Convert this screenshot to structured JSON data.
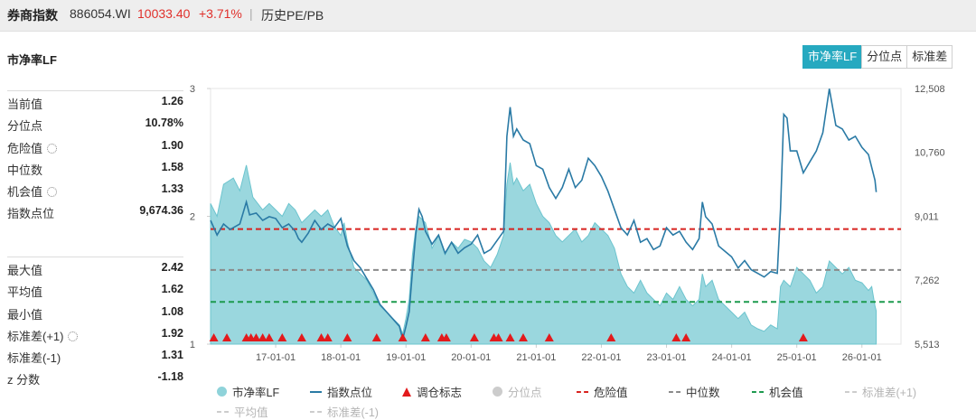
{
  "header": {
    "name": "券商指数",
    "code": "886054.WI",
    "price": "10033.40",
    "change": "+3.71%",
    "separator": "|",
    "history_link": "历史PE/PB"
  },
  "chart_title": "市净率LF",
  "tabs": [
    {
      "label": "市净率LF",
      "active": true
    },
    {
      "label": "分位点",
      "active": false
    },
    {
      "label": "标准差",
      "active": false
    }
  ],
  "stats_top": [
    {
      "label": "当前值",
      "value": "1.26",
      "gear": false
    },
    {
      "label": "分位点",
      "value": "10.78%",
      "gear": false
    },
    {
      "label": "危险值",
      "value": "1.90",
      "gear": true
    },
    {
      "label": "中位数",
      "value": "1.58",
      "gear": false
    },
    {
      "label": "机会值",
      "value": "1.33",
      "gear": true
    },
    {
      "label": "指数点位",
      "value": "9,674.36",
      "gear": false
    }
  ],
  "stats_bottom": [
    {
      "label": "最大值",
      "value": "2.42",
      "gear": false
    },
    {
      "label": "平均值",
      "value": "1.62",
      "gear": false
    },
    {
      "label": "最小值",
      "value": "1.08",
      "gear": false
    },
    {
      "label": "标准差(+1)",
      "value": "1.92",
      "gear": true
    },
    {
      "label": "标准差(-1)",
      "value": "1.31",
      "gear": false
    },
    {
      "label": "z 分数",
      "value": "-1.18",
      "gear": false
    }
  ],
  "colors": {
    "area": "#8fd3da",
    "area_line": "#6cc4ce",
    "index_line": "#2a7aa5",
    "danger": "#d8221f",
    "median": "#8a8a8a",
    "opportunity": "#1d9a4e",
    "marker": "#e31a1c",
    "tab_active": "#26a9c0"
  },
  "legend": [
    {
      "label": "市净率LF",
      "marker": "dot",
      "color": "#8fd3da",
      "faded": false
    },
    {
      "label": "指数点位",
      "marker": "line",
      "color": "#2a7aa5",
      "faded": false
    },
    {
      "label": "调仓标志",
      "marker": "tri",
      "color": "#e31a1c",
      "faded": false
    },
    {
      "label": "分位点",
      "marker": "dot",
      "color": "#cccccc",
      "faded": true
    },
    {
      "label": "危险值",
      "marker": "dash",
      "color": "#d8221f",
      "faded": false
    },
    {
      "label": "中位数",
      "marker": "dash",
      "color": "#8a8a8a",
      "faded": false
    },
    {
      "label": "机会值",
      "marker": "dash",
      "color": "#1d9a4e",
      "faded": false
    },
    {
      "label": "标准差(+1)",
      "marker": "dash",
      "color": "#cccccc",
      "faded": true
    },
    {
      "label": "平均值",
      "marker": "dash",
      "color": "#cccccc",
      "faded": true
    },
    {
      "label": "标准差(-1)",
      "marker": "dash",
      "color": "#cccccc",
      "faded": true
    }
  ],
  "chart_data": {
    "type": "area+line",
    "x_ticks": [
      "17-01-01",
      "18-01-01",
      "19-01-01",
      "20-01-01",
      "21-01-01",
      "22-01-01",
      "23-01-01",
      "24-01-01",
      "25-01-01",
      "26-01-01"
    ],
    "x_range": [
      2016.0,
      2026.6
    ],
    "y_left": {
      "ticks": [
        "1",
        "2",
        "3"
      ],
      "range": [
        1,
        3
      ]
    },
    "y_right": {
      "ticks": [
        "12,508",
        "10,760",
        "9,011",
        "7,262",
        "5,513"
      ],
      "range": [
        5513,
        12508
      ]
    },
    "reference_lines": {
      "danger": 1.9,
      "median": 1.58,
      "opportunity": 1.33
    },
    "pb_series": [
      [
        2016.0,
        2.1
      ],
      [
        2016.1,
        2.0
      ],
      [
        2016.2,
        2.25
      ],
      [
        2016.35,
        2.3
      ],
      [
        2016.45,
        2.2
      ],
      [
        2016.55,
        2.4
      ],
      [
        2016.65,
        2.15
      ],
      [
        2016.8,
        2.05
      ],
      [
        2016.9,
        2.1
      ],
      [
        2017.0,
        2.05
      ],
      [
        2017.1,
        2.0
      ],
      [
        2017.2,
        2.1
      ],
      [
        2017.3,
        2.05
      ],
      [
        2017.4,
        1.95
      ],
      [
        2017.5,
        2.0
      ],
      [
        2017.6,
        2.05
      ],
      [
        2017.7,
        2.0
      ],
      [
        2017.8,
        2.05
      ],
      [
        2017.9,
        1.92
      ],
      [
        2018.0,
        1.85
      ],
      [
        2018.05,
        1.95
      ],
      [
        2018.1,
        1.8
      ],
      [
        2018.2,
        1.6
      ],
      [
        2018.3,
        1.55
      ],
      [
        2018.4,
        1.5
      ],
      [
        2018.5,
        1.4
      ],
      [
        2018.6,
        1.3
      ],
      [
        2018.7,
        1.25
      ],
      [
        2018.8,
        1.2
      ],
      [
        2018.9,
        1.15
      ],
      [
        2018.95,
        1.08
      ],
      [
        2019.0,
        1.2
      ],
      [
        2019.05,
        1.35
      ],
      [
        2019.1,
        1.7
      ],
      [
        2019.15,
        1.9
      ],
      [
        2019.2,
        2.0
      ],
      [
        2019.3,
        1.95
      ],
      [
        2019.4,
        1.75
      ],
      [
        2019.5,
        1.85
      ],
      [
        2019.6,
        1.7
      ],
      [
        2019.7,
        1.8
      ],
      [
        2019.8,
        1.75
      ],
      [
        2019.9,
        1.82
      ],
      [
        2020.0,
        1.8
      ],
      [
        2020.1,
        1.75
      ],
      [
        2020.2,
        1.65
      ],
      [
        2020.3,
        1.6
      ],
      [
        2020.4,
        1.7
      ],
      [
        2020.5,
        1.85
      ],
      [
        2020.55,
        2.25
      ],
      [
        2020.6,
        2.42
      ],
      [
        2020.65,
        2.25
      ],
      [
        2020.7,
        2.3
      ],
      [
        2020.8,
        2.2
      ],
      [
        2020.9,
        2.25
      ],
      [
        2021.0,
        2.1
      ],
      [
        2021.1,
        2.0
      ],
      [
        2021.2,
        1.95
      ],
      [
        2021.3,
        1.85
      ],
      [
        2021.4,
        1.8
      ],
      [
        2021.5,
        1.85
      ],
      [
        2021.6,
        1.9
      ],
      [
        2021.7,
        1.8
      ],
      [
        2021.8,
        1.85
      ],
      [
        2021.9,
        1.95
      ],
      [
        2022.0,
        1.9
      ],
      [
        2022.1,
        1.85
      ],
      [
        2022.2,
        1.75
      ],
      [
        2022.3,
        1.55
      ],
      [
        2022.4,
        1.45
      ],
      [
        2022.5,
        1.4
      ],
      [
        2022.6,
        1.5
      ],
      [
        2022.7,
        1.4
      ],
      [
        2022.8,
        1.35
      ],
      [
        2022.9,
        1.3
      ],
      [
        2023.0,
        1.4
      ],
      [
        2023.1,
        1.35
      ],
      [
        2023.2,
        1.45
      ],
      [
        2023.3,
        1.35
      ],
      [
        2023.4,
        1.3
      ],
      [
        2023.5,
        1.35
      ],
      [
        2023.55,
        1.55
      ],
      [
        2023.6,
        1.45
      ],
      [
        2023.7,
        1.5
      ],
      [
        2023.8,
        1.35
      ],
      [
        2023.9,
        1.3
      ],
      [
        2024.0,
        1.25
      ],
      [
        2024.1,
        1.2
      ],
      [
        2024.2,
        1.25
      ],
      [
        2024.3,
        1.15
      ],
      [
        2024.4,
        1.12
      ],
      [
        2024.5,
        1.1
      ],
      [
        2024.6,
        1.15
      ],
      [
        2024.7,
        1.12
      ],
      [
        2024.75,
        1.45
      ],
      [
        2024.8,
        1.5
      ],
      [
        2024.9,
        1.45
      ],
      [
        2025.0,
        1.6
      ],
      [
        2025.1,
        1.55
      ],
      [
        2025.2,
        1.5
      ],
      [
        2025.3,
        1.4
      ],
      [
        2025.4,
        1.45
      ],
      [
        2025.5,
        1.65
      ],
      [
        2025.6,
        1.6
      ],
      [
        2025.7,
        1.55
      ],
      [
        2025.8,
        1.6
      ],
      [
        2025.9,
        1.5
      ],
      [
        2026.0,
        1.48
      ],
      [
        2026.1,
        1.42
      ],
      [
        2026.15,
        1.45
      ],
      [
        2026.2,
        1.3
      ],
      [
        2026.22,
        1.26
      ]
    ],
    "index_series": [
      [
        2016.0,
        8900
      ],
      [
        2016.1,
        8500
      ],
      [
        2016.2,
        8800
      ],
      [
        2016.3,
        8650
      ],
      [
        2016.45,
        8800
      ],
      [
        2016.55,
        9400
      ],
      [
        2016.6,
        9050
      ],
      [
        2016.7,
        9100
      ],
      [
        2016.8,
        8900
      ],
      [
        2016.9,
        9000
      ],
      [
        2017.0,
        8950
      ],
      [
        2017.1,
        8700
      ],
      [
        2017.2,
        8800
      ],
      [
        2017.3,
        8600
      ],
      [
        2017.35,
        8400
      ],
      [
        2017.4,
        8300
      ],
      [
        2017.5,
        8550
      ],
      [
        2017.6,
        8900
      ],
      [
        2017.7,
        8650
      ],
      [
        2017.8,
        8800
      ],
      [
        2017.9,
        8700
      ],
      [
        2018.0,
        8950
      ],
      [
        2018.05,
        8550
      ],
      [
        2018.1,
        8200
      ],
      [
        2018.2,
        7800
      ],
      [
        2018.3,
        7600
      ],
      [
        2018.4,
        7300
      ],
      [
        2018.5,
        7000
      ],
      [
        2018.6,
        6600
      ],
      [
        2018.7,
        6400
      ],
      [
        2018.8,
        6200
      ],
      [
        2018.9,
        6000
      ],
      [
        2018.95,
        5650
      ],
      [
        2019.0,
        6000
      ],
      [
        2019.05,
        6400
      ],
      [
        2019.1,
        7500
      ],
      [
        2019.15,
        8500
      ],
      [
        2019.2,
        9200
      ],
      [
        2019.25,
        9000
      ],
      [
        2019.3,
        8600
      ],
      [
        2019.4,
        8250
      ],
      [
        2019.5,
        8500
      ],
      [
        2019.6,
        8000
      ],
      [
        2019.7,
        8300
      ],
      [
        2019.8,
        8000
      ],
      [
        2019.9,
        8150
      ],
      [
        2020.0,
        8250
      ],
      [
        2020.1,
        8500
      ],
      [
        2020.2,
        8000
      ],
      [
        2020.3,
        8100
      ],
      [
        2020.4,
        8350
      ],
      [
        2020.5,
        8600
      ],
      [
        2020.55,
        11200
      ],
      [
        2020.6,
        12000
      ],
      [
        2020.65,
        11200
      ],
      [
        2020.7,
        11400
      ],
      [
        2020.8,
        11100
      ],
      [
        2020.9,
        11000
      ],
      [
        2021.0,
        10400
      ],
      [
        2021.1,
        10300
      ],
      [
        2021.2,
        9800
      ],
      [
        2021.3,
        9500
      ],
      [
        2021.4,
        9800
      ],
      [
        2021.5,
        10300
      ],
      [
        2021.6,
        9800
      ],
      [
        2021.7,
        10000
      ],
      [
        2021.8,
        10600
      ],
      [
        2021.9,
        10400
      ],
      [
        2022.0,
        10100
      ],
      [
        2022.1,
        9700
      ],
      [
        2022.2,
        9200
      ],
      [
        2022.3,
        8700
      ],
      [
        2022.4,
        8500
      ],
      [
        2022.5,
        8900
      ],
      [
        2022.6,
        8300
      ],
      [
        2022.7,
        8400
      ],
      [
        2022.8,
        8100
      ],
      [
        2022.9,
        8200
      ],
      [
        2023.0,
        8700
      ],
      [
        2023.1,
        8500
      ],
      [
        2023.2,
        8600
      ],
      [
        2023.3,
        8300
      ],
      [
        2023.4,
        8100
      ],
      [
        2023.5,
        8400
      ],
      [
        2023.55,
        9400
      ],
      [
        2023.6,
        9000
      ],
      [
        2023.7,
        8800
      ],
      [
        2023.8,
        8200
      ],
      [
        2023.9,
        8050
      ],
      [
        2024.0,
        7900
      ],
      [
        2024.1,
        7600
      ],
      [
        2024.2,
        7800
      ],
      [
        2024.3,
        7550
      ],
      [
        2024.4,
        7450
      ],
      [
        2024.5,
        7350
      ],
      [
        2024.6,
        7500
      ],
      [
        2024.7,
        7450
      ],
      [
        2024.75,
        9200
      ],
      [
        2024.8,
        11800
      ],
      [
        2024.85,
        11700
      ],
      [
        2024.9,
        10800
      ],
      [
        2025.0,
        10800
      ],
      [
        2025.1,
        10200
      ],
      [
        2025.2,
        10500
      ],
      [
        2025.3,
        10800
      ],
      [
        2025.4,
        11300
      ],
      [
        2025.5,
        12500
      ],
      [
        2025.6,
        11500
      ],
      [
        2025.7,
        11400
      ],
      [
        2025.8,
        11100
      ],
      [
        2025.9,
        11200
      ],
      [
        2026.0,
        10900
      ],
      [
        2026.1,
        10700
      ],
      [
        2026.2,
        10000
      ],
      [
        2026.22,
        9674
      ]
    ],
    "rebalance_markers": [
      2016.05,
      2016.25,
      2016.55,
      2016.62,
      2016.7,
      2016.8,
      2016.9,
      2017.1,
      2017.4,
      2017.7,
      2017.8,
      2018.1,
      2018.55,
      2018.95,
      2019.3,
      2019.55,
      2019.62,
      2020.05,
      2020.35,
      2020.42,
      2020.6,
      2020.8,
      2021.2,
      2022.15,
      2023.15,
      2023.3,
      2025.1
    ]
  }
}
